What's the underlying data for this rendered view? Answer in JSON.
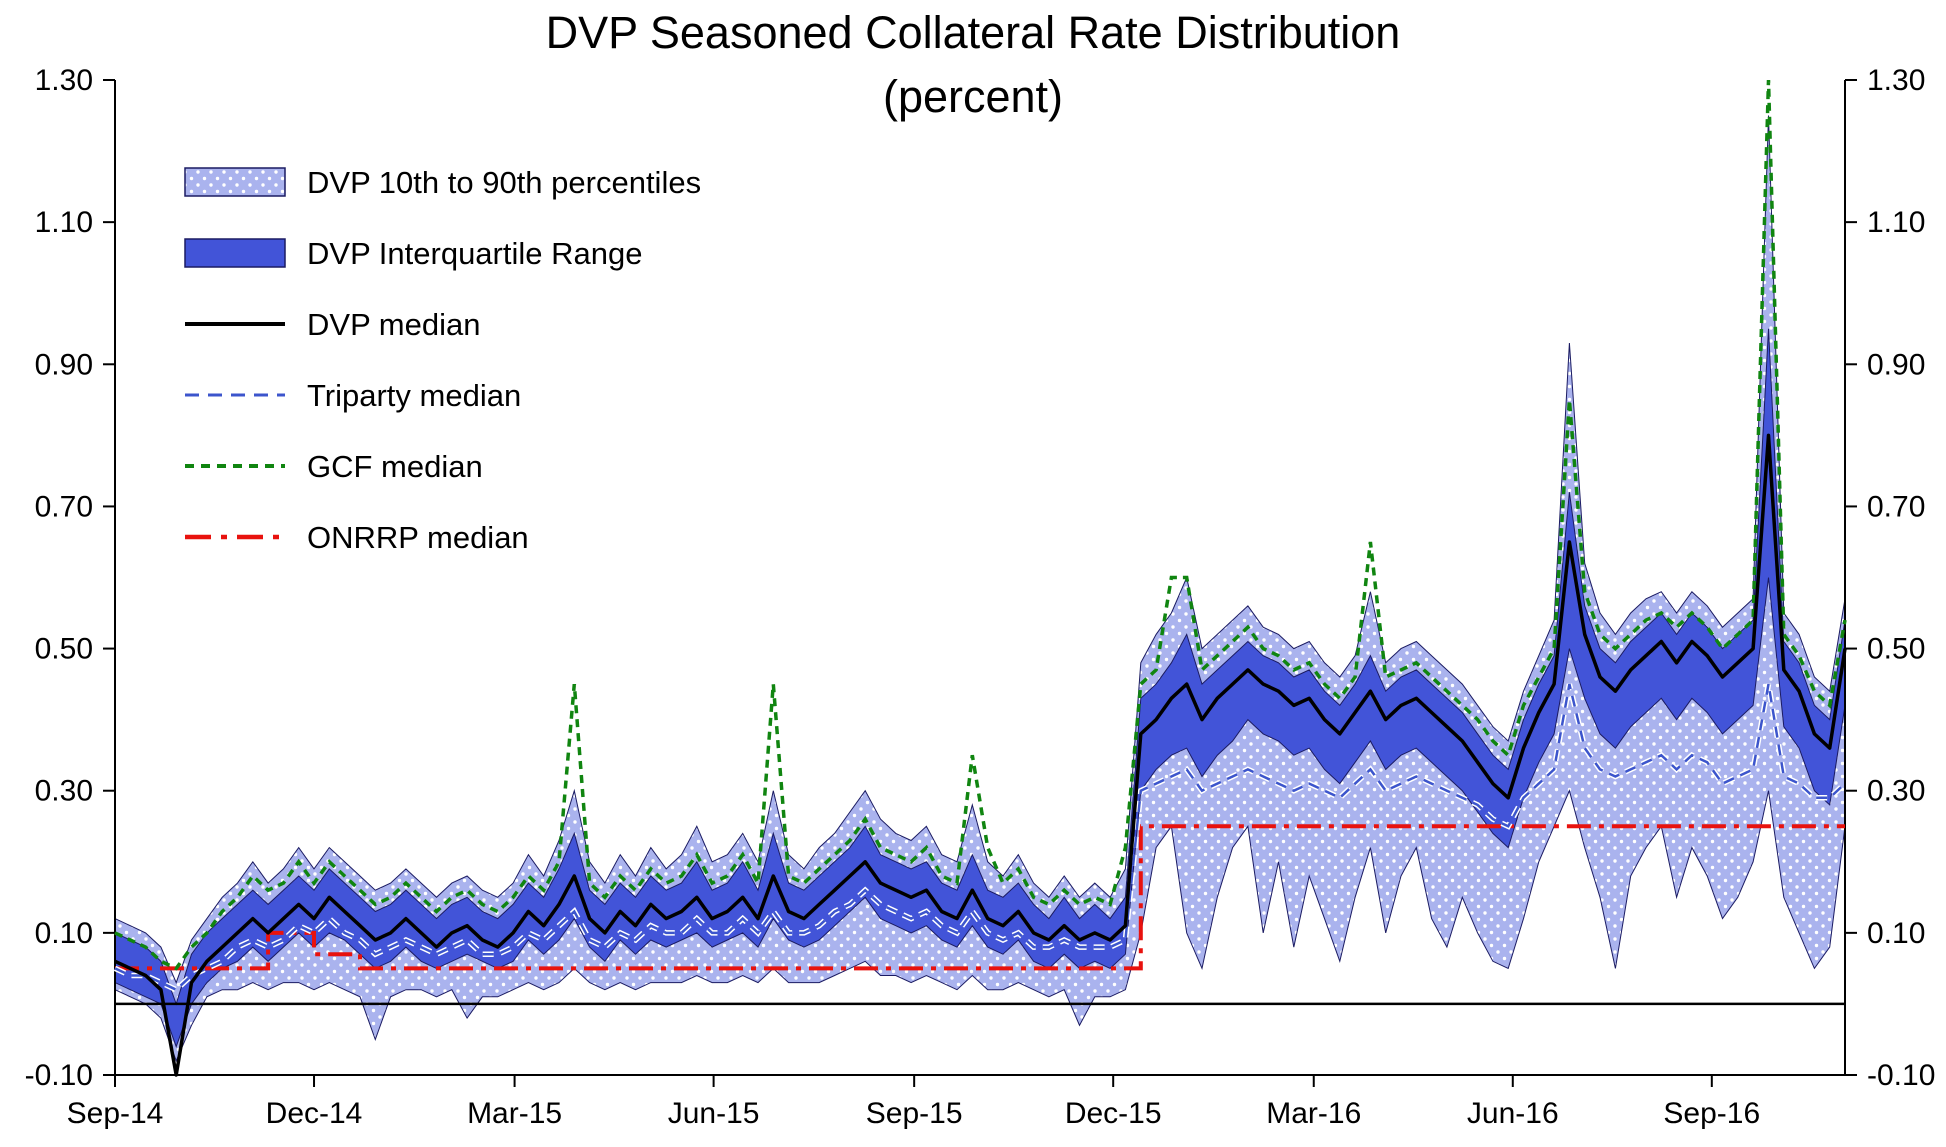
{
  "title": {
    "line1": "DVP Seasoned Collateral Rate Distribution",
    "line2": "(percent)"
  },
  "legend": [
    {
      "label": "DVP 10th to 90th percentiles",
      "swatch": "band-light"
    },
    {
      "label": "DVP Interquartile Range",
      "swatch": "band-dark"
    },
    {
      "label": "DVP median",
      "swatch": "line-solid-black"
    },
    {
      "label": "Triparty median",
      "swatch": "line-dashed-blue"
    },
    {
      "label": "GCF median",
      "swatch": "line-dashed-green"
    },
    {
      "label": "ONRRP median",
      "swatch": "line-dashdot-red"
    }
  ],
  "colors": {
    "band_light": "#aab3ee",
    "band_light_dot": "#ffffff",
    "band_dark": "#4254d8",
    "band_outline": "#1b1b62",
    "dvp_median": "#000000",
    "triparty": "#3c55cc",
    "gcf": "#108510",
    "onrrp": "#e8120e",
    "axis": "#000000"
  },
  "chart_data": {
    "type": "area",
    "title": "DVP Seasoned Collateral Rate Distribution (percent)",
    "x_unit": "weeks from Sep-2014 (approx. weekly observations)",
    "x_max": 113,
    "ylim": [
      -0.1,
      1.3
    ],
    "grid": false,
    "legend_position": "top-left-inside",
    "y_ticks": [
      {
        "value": -0.1,
        "label": "-0.10"
      },
      {
        "value": 0.1,
        "label": "0.10"
      },
      {
        "value": 0.3,
        "label": "0.30"
      },
      {
        "value": 0.5,
        "label": "0.50"
      },
      {
        "value": 0.7,
        "label": "0.70"
      },
      {
        "value": 0.9,
        "label": "0.90"
      },
      {
        "value": 1.1,
        "label": "1.10"
      },
      {
        "value": 1.3,
        "label": "1.30"
      }
    ],
    "x_ticks": [
      {
        "week": 0,
        "label": "Sep-14"
      },
      {
        "week": 13,
        "label": "Dec-14"
      },
      {
        "week": 26.1,
        "label": "Mar-15"
      },
      {
        "week": 39.1,
        "label": "Jun-15"
      },
      {
        "week": 52.2,
        "label": "Sep-15"
      },
      {
        "week": 65.2,
        "label": "Dec-15"
      },
      {
        "week": 78.3,
        "label": "Mar-16"
      },
      {
        "week": 91.3,
        "label": "Jun-16"
      },
      {
        "week": 104.3,
        "label": "Sep-16"
      }
    ],
    "series": [
      {
        "name": "p10",
        "label": "DVP 10th percentile",
        "values": [
          0.02,
          0.01,
          0.0,
          -0.02,
          -0.08,
          -0.03,
          0.01,
          0.02,
          0.02,
          0.03,
          0.02,
          0.03,
          0.03,
          0.02,
          0.03,
          0.02,
          0.01,
          -0.05,
          0.01,
          0.02,
          0.02,
          0.01,
          0.02,
          -0.02,
          0.01,
          0.01,
          0.02,
          0.03,
          0.02,
          0.03,
          0.05,
          0.03,
          0.02,
          0.03,
          0.02,
          0.03,
          0.03,
          0.03,
          0.04,
          0.03,
          0.03,
          0.04,
          0.03,
          0.05,
          0.03,
          0.03,
          0.03,
          0.04,
          0.05,
          0.06,
          0.04,
          0.04,
          0.03,
          0.04,
          0.03,
          0.02,
          0.04,
          0.02,
          0.02,
          0.03,
          0.02,
          0.01,
          0.02,
          -0.03,
          0.01,
          0.01,
          0.02,
          0.1,
          0.22,
          0.25,
          0.1,
          0.05,
          0.15,
          0.22,
          0.25,
          0.1,
          0.2,
          0.08,
          0.18,
          0.12,
          0.06,
          0.15,
          0.22,
          0.1,
          0.18,
          0.22,
          0.12,
          0.08,
          0.15,
          0.1,
          0.06,
          0.05,
          0.12,
          0.2,
          0.25,
          0.3,
          0.22,
          0.15,
          0.05,
          0.18,
          0.22,
          0.25,
          0.15,
          0.22,
          0.18,
          0.12,
          0.15,
          0.2,
          0.3,
          0.15,
          0.1,
          0.05,
          0.08,
          0.25
        ]
      },
      {
        "name": "p25",
        "label": "DVP 25th percentile",
        "values": [
          0.03,
          0.02,
          0.01,
          0.0,
          -0.06,
          0.0,
          0.03,
          0.05,
          0.06,
          0.08,
          0.06,
          0.08,
          0.1,
          0.08,
          0.1,
          0.09,
          0.07,
          0.05,
          0.06,
          0.08,
          0.06,
          0.05,
          0.06,
          0.07,
          0.06,
          0.05,
          0.06,
          0.09,
          0.07,
          0.09,
          0.12,
          0.08,
          0.06,
          0.09,
          0.07,
          0.09,
          0.08,
          0.09,
          0.1,
          0.08,
          0.09,
          0.1,
          0.08,
          0.12,
          0.09,
          0.08,
          0.09,
          0.11,
          0.13,
          0.15,
          0.12,
          0.11,
          0.1,
          0.11,
          0.09,
          0.08,
          0.11,
          0.08,
          0.07,
          0.09,
          0.06,
          0.05,
          0.07,
          0.05,
          0.06,
          0.05,
          0.07,
          0.3,
          0.33,
          0.35,
          0.36,
          0.32,
          0.35,
          0.37,
          0.4,
          0.38,
          0.37,
          0.35,
          0.36,
          0.33,
          0.31,
          0.34,
          0.37,
          0.33,
          0.35,
          0.36,
          0.34,
          0.32,
          0.3,
          0.27,
          0.24,
          0.22,
          0.29,
          0.34,
          0.38,
          0.5,
          0.43,
          0.38,
          0.36,
          0.39,
          0.41,
          0.43,
          0.4,
          0.43,
          0.41,
          0.38,
          0.4,
          0.42,
          0.6,
          0.39,
          0.36,
          0.3,
          0.28,
          0.42
        ]
      },
      {
        "name": "p75",
        "label": "DVP 75th percentile",
        "values": [
          0.1,
          0.09,
          0.08,
          0.06,
          0.0,
          0.07,
          0.1,
          0.12,
          0.14,
          0.16,
          0.14,
          0.16,
          0.18,
          0.16,
          0.19,
          0.17,
          0.15,
          0.13,
          0.14,
          0.16,
          0.14,
          0.12,
          0.14,
          0.15,
          0.13,
          0.12,
          0.14,
          0.17,
          0.15,
          0.19,
          0.24,
          0.16,
          0.14,
          0.17,
          0.15,
          0.18,
          0.16,
          0.17,
          0.2,
          0.16,
          0.17,
          0.2,
          0.16,
          0.24,
          0.17,
          0.16,
          0.18,
          0.2,
          0.22,
          0.25,
          0.21,
          0.2,
          0.19,
          0.2,
          0.17,
          0.16,
          0.21,
          0.16,
          0.15,
          0.17,
          0.14,
          0.12,
          0.15,
          0.12,
          0.14,
          0.12,
          0.15,
          0.43,
          0.45,
          0.48,
          0.52,
          0.45,
          0.47,
          0.49,
          0.51,
          0.49,
          0.48,
          0.46,
          0.47,
          0.44,
          0.42,
          0.45,
          0.49,
          0.44,
          0.46,
          0.47,
          0.45,
          0.43,
          0.41,
          0.38,
          0.35,
          0.33,
          0.4,
          0.45,
          0.49,
          0.72,
          0.56,
          0.5,
          0.48,
          0.51,
          0.53,
          0.55,
          0.52,
          0.55,
          0.53,
          0.5,
          0.52,
          0.54,
          0.95,
          0.51,
          0.48,
          0.42,
          0.4,
          0.54
        ]
      },
      {
        "name": "p90",
        "label": "DVP 90th percentile",
        "values": [
          0.12,
          0.11,
          0.1,
          0.08,
          0.03,
          0.09,
          0.12,
          0.15,
          0.17,
          0.2,
          0.17,
          0.19,
          0.22,
          0.19,
          0.22,
          0.2,
          0.18,
          0.16,
          0.17,
          0.19,
          0.17,
          0.15,
          0.17,
          0.18,
          0.16,
          0.15,
          0.17,
          0.21,
          0.18,
          0.23,
          0.3,
          0.2,
          0.17,
          0.21,
          0.18,
          0.22,
          0.19,
          0.21,
          0.25,
          0.2,
          0.21,
          0.24,
          0.2,
          0.3,
          0.21,
          0.19,
          0.22,
          0.24,
          0.27,
          0.3,
          0.26,
          0.24,
          0.23,
          0.25,
          0.21,
          0.2,
          0.28,
          0.2,
          0.18,
          0.21,
          0.17,
          0.15,
          0.18,
          0.15,
          0.17,
          0.15,
          0.19,
          0.48,
          0.52,
          0.55,
          0.6,
          0.5,
          0.52,
          0.54,
          0.56,
          0.53,
          0.52,
          0.5,
          0.51,
          0.48,
          0.46,
          0.49,
          0.58,
          0.48,
          0.5,
          0.51,
          0.49,
          0.47,
          0.45,
          0.42,
          0.39,
          0.37,
          0.44,
          0.49,
          0.54,
          0.93,
          0.62,
          0.55,
          0.52,
          0.55,
          0.57,
          0.58,
          0.55,
          0.58,
          0.56,
          0.53,
          0.55,
          0.57,
          1.25,
          0.55,
          0.52,
          0.46,
          0.44,
          0.57
        ]
      },
      {
        "name": "dvp_median",
        "label": "DVP median",
        "values": [
          0.06,
          0.05,
          0.04,
          0.02,
          -0.1,
          0.03,
          0.06,
          0.08,
          0.1,
          0.12,
          0.1,
          0.12,
          0.14,
          0.12,
          0.15,
          0.13,
          0.11,
          0.09,
          0.1,
          0.12,
          0.1,
          0.08,
          0.1,
          0.11,
          0.09,
          0.08,
          0.1,
          0.13,
          0.11,
          0.14,
          0.18,
          0.12,
          0.1,
          0.13,
          0.11,
          0.14,
          0.12,
          0.13,
          0.15,
          0.12,
          0.13,
          0.15,
          0.12,
          0.18,
          0.13,
          0.12,
          0.14,
          0.16,
          0.18,
          0.2,
          0.17,
          0.16,
          0.15,
          0.16,
          0.13,
          0.12,
          0.16,
          0.12,
          0.11,
          0.13,
          0.1,
          0.09,
          0.11,
          0.09,
          0.1,
          0.09,
          0.11,
          0.38,
          0.4,
          0.43,
          0.45,
          0.4,
          0.43,
          0.45,
          0.47,
          0.45,
          0.44,
          0.42,
          0.43,
          0.4,
          0.38,
          0.41,
          0.44,
          0.4,
          0.42,
          0.43,
          0.41,
          0.39,
          0.37,
          0.34,
          0.31,
          0.29,
          0.36,
          0.41,
          0.45,
          0.65,
          0.52,
          0.46,
          0.44,
          0.47,
          0.49,
          0.51,
          0.48,
          0.51,
          0.49,
          0.46,
          0.48,
          0.5,
          0.8,
          0.47,
          0.44,
          0.38,
          0.36,
          0.5
        ]
      },
      {
        "name": "triparty_median",
        "label": "Triparty median",
        "values": [
          0.05,
          0.04,
          0.04,
          0.03,
          0.02,
          0.04,
          0.05,
          0.06,
          0.08,
          0.09,
          0.08,
          0.09,
          0.11,
          0.1,
          0.12,
          0.1,
          0.09,
          0.07,
          0.08,
          0.09,
          0.08,
          0.07,
          0.08,
          0.09,
          0.07,
          0.07,
          0.08,
          0.1,
          0.09,
          0.11,
          0.13,
          0.09,
          0.08,
          0.1,
          0.09,
          0.11,
          0.1,
          0.1,
          0.12,
          0.1,
          0.1,
          0.12,
          0.1,
          0.13,
          0.1,
          0.1,
          0.11,
          0.13,
          0.14,
          0.16,
          0.14,
          0.13,
          0.12,
          0.13,
          0.11,
          0.1,
          0.13,
          0.1,
          0.09,
          0.1,
          0.08,
          0.08,
          0.09,
          0.08,
          0.08,
          0.08,
          0.09,
          0.3,
          0.31,
          0.32,
          0.33,
          0.3,
          0.31,
          0.32,
          0.33,
          0.32,
          0.31,
          0.3,
          0.31,
          0.3,
          0.29,
          0.31,
          0.33,
          0.3,
          0.31,
          0.32,
          0.31,
          0.3,
          0.29,
          0.28,
          0.26,
          0.25,
          0.29,
          0.31,
          0.33,
          0.45,
          0.36,
          0.33,
          0.32,
          0.33,
          0.34,
          0.35,
          0.33,
          0.35,
          0.34,
          0.31,
          0.32,
          0.33,
          0.45,
          0.32,
          0.31,
          0.29,
          0.29,
          0.31
        ]
      },
      {
        "name": "gcf_median",
        "label": "GCF median",
        "values": [
          0.1,
          0.09,
          0.08,
          0.06,
          0.05,
          0.08,
          0.1,
          0.13,
          0.15,
          0.18,
          0.16,
          0.17,
          0.2,
          0.17,
          0.2,
          0.18,
          0.16,
          0.14,
          0.15,
          0.17,
          0.15,
          0.13,
          0.15,
          0.16,
          0.14,
          0.13,
          0.15,
          0.18,
          0.16,
          0.2,
          0.45,
          0.17,
          0.15,
          0.18,
          0.16,
          0.19,
          0.17,
          0.18,
          0.21,
          0.17,
          0.18,
          0.21,
          0.17,
          0.45,
          0.18,
          0.17,
          0.19,
          0.21,
          0.23,
          0.26,
          0.22,
          0.21,
          0.2,
          0.22,
          0.18,
          0.17,
          0.35,
          0.22,
          0.17,
          0.19,
          0.15,
          0.14,
          0.16,
          0.14,
          0.15,
          0.14,
          0.22,
          0.45,
          0.47,
          0.6,
          0.6,
          0.47,
          0.49,
          0.51,
          0.53,
          0.5,
          0.49,
          0.47,
          0.48,
          0.45,
          0.43,
          0.46,
          0.65,
          0.46,
          0.47,
          0.48,
          0.46,
          0.44,
          0.42,
          0.4,
          0.37,
          0.35,
          0.42,
          0.46,
          0.5,
          0.85,
          0.58,
          0.52,
          0.5,
          0.52,
          0.54,
          0.55,
          0.53,
          0.55,
          0.53,
          0.5,
          0.52,
          0.54,
          1.3,
          0.52,
          0.49,
          0.44,
          0.42,
          0.54
        ]
      },
      {
        "name": "onrrp_median",
        "label": "ONRRP median",
        "values": [
          0.05,
          0.05,
          0.05,
          0.05,
          0.05,
          0.05,
          0.05,
          0.05,
          0.05,
          0.05,
          0.1,
          0.1,
          0.1,
          0.07,
          0.07,
          0.07,
          0.05,
          0.05,
          0.05,
          0.05,
          0.05,
          0.05,
          0.05,
          0.05,
          0.05,
          0.05,
          0.05,
          0.05,
          0.05,
          0.05,
          0.05,
          0.05,
          0.05,
          0.05,
          0.05,
          0.05,
          0.05,
          0.05,
          0.05,
          0.05,
          0.05,
          0.05,
          0.05,
          0.05,
          0.05,
          0.05,
          0.05,
          0.05,
          0.05,
          0.05,
          0.05,
          0.05,
          0.05,
          0.05,
          0.05,
          0.05,
          0.05,
          0.05,
          0.05,
          0.05,
          0.05,
          0.05,
          0.05,
          0.05,
          0.05,
          0.05,
          0.05,
          0.25,
          0.25,
          0.25,
          0.25,
          0.25,
          0.25,
          0.25,
          0.25,
          0.25,
          0.25,
          0.25,
          0.25,
          0.25,
          0.25,
          0.25,
          0.25,
          0.25,
          0.25,
          0.25,
          0.25,
          0.25,
          0.25,
          0.25,
          0.25,
          0.25,
          0.25,
          0.25,
          0.25,
          0.25,
          0.25,
          0.25,
          0.25,
          0.25,
          0.25,
          0.25,
          0.25,
          0.25,
          0.25,
          0.25,
          0.25,
          0.25,
          0.25,
          0.25,
          0.25,
          0.25,
          0.25,
          0.25
        ]
      }
    ]
  }
}
